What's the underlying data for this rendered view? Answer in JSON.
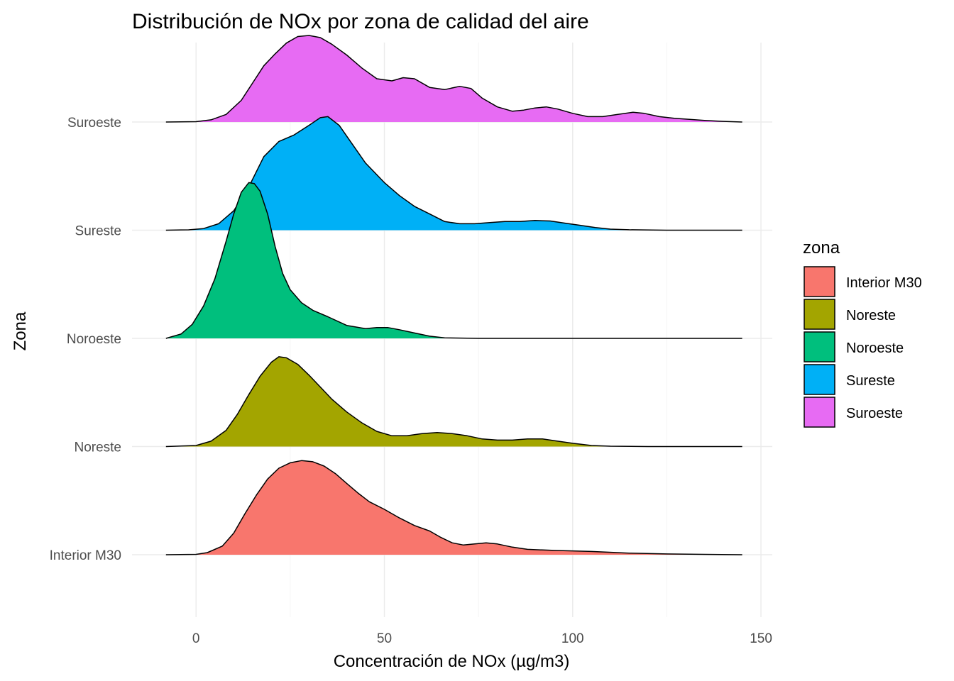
{
  "chart_data": {
    "type": "ridgeline",
    "title": "Distribución de NOx por zona de calidad del aire",
    "xlabel": "Concentración de NOx (µg/m3)",
    "ylabel": "Zona",
    "xlim": [
      -17,
      153
    ],
    "x_ticks": [
      0,
      50,
      100,
      150
    ],
    "x_tick_labels": [
      "0",
      "50",
      "100",
      "150"
    ],
    "x_minor_ticks": [
      25,
      75,
      125
    ],
    "y_categories": [
      "Interior M30",
      "Noreste",
      "Noroeste",
      "Sureste",
      "Suroeste"
    ],
    "grid": true,
    "legend": {
      "title": "zona",
      "position": "right"
    },
    "density_scale_note": "density height in units of category spacing",
    "series": [
      {
        "name": "Interior M30",
        "color": "#F8766D",
        "points": [
          [
            -8,
            0
          ],
          [
            0,
            0.003
          ],
          [
            3,
            0.02
          ],
          [
            7,
            0.08
          ],
          [
            10,
            0.2
          ],
          [
            13,
            0.38
          ],
          [
            16,
            0.55
          ],
          [
            19,
            0.7
          ],
          [
            22,
            0.8
          ],
          [
            25,
            0.85
          ],
          [
            28,
            0.87
          ],
          [
            31,
            0.86
          ],
          [
            34,
            0.82
          ],
          [
            37,
            0.75
          ],
          [
            40,
            0.66
          ],
          [
            43,
            0.57
          ],
          [
            46,
            0.49
          ],
          [
            50,
            0.42
          ],
          [
            54,
            0.34
          ],
          [
            58,
            0.27
          ],
          [
            62,
            0.22
          ],
          [
            65,
            0.16
          ],
          [
            68,
            0.11
          ],
          [
            71,
            0.09
          ],
          [
            74,
            0.1
          ],
          [
            77,
            0.11
          ],
          [
            80,
            0.1
          ],
          [
            84,
            0.07
          ],
          [
            88,
            0.05
          ],
          [
            95,
            0.04
          ],
          [
            105,
            0.03
          ],
          [
            115,
            0.015
          ],
          [
            125,
            0.007
          ],
          [
            135,
            0.003
          ],
          [
            145,
            0
          ]
        ]
      },
      {
        "name": "Noreste",
        "color": "#A3A500",
        "points": [
          [
            -8,
            0
          ],
          [
            0,
            0.01
          ],
          [
            4,
            0.05
          ],
          [
            8,
            0.15
          ],
          [
            11,
            0.3
          ],
          [
            14,
            0.48
          ],
          [
            17,
            0.65
          ],
          [
            20,
            0.78
          ],
          [
            22,
            0.83
          ],
          [
            24,
            0.82
          ],
          [
            27,
            0.76
          ],
          [
            30,
            0.66
          ],
          [
            33,
            0.55
          ],
          [
            36,
            0.44
          ],
          [
            40,
            0.32
          ],
          [
            44,
            0.22
          ],
          [
            48,
            0.14
          ],
          [
            52,
            0.1
          ],
          [
            56,
            0.1
          ],
          [
            60,
            0.12
          ],
          [
            64,
            0.13
          ],
          [
            68,
            0.12
          ],
          [
            72,
            0.1
          ],
          [
            76,
            0.07
          ],
          [
            80,
            0.06
          ],
          [
            84,
            0.06
          ],
          [
            88,
            0.07
          ],
          [
            92,
            0.07
          ],
          [
            96,
            0.05
          ],
          [
            100,
            0.03
          ],
          [
            105,
            0.01
          ],
          [
            110,
            0.003
          ],
          [
            120,
            0
          ],
          [
            145,
            0
          ]
        ]
      },
      {
        "name": "Noroeste",
        "color": "#00BF7D",
        "points": [
          [
            -8,
            0
          ],
          [
            -4,
            0.04
          ],
          [
            -1,
            0.13
          ],
          [
            2,
            0.3
          ],
          [
            5,
            0.55
          ],
          [
            8,
            0.9
          ],
          [
            10,
            1.15
          ],
          [
            12,
            1.35
          ],
          [
            14,
            1.44
          ],
          [
            15.5,
            1.43
          ],
          [
            17,
            1.36
          ],
          [
            19,
            1.15
          ],
          [
            21,
            0.85
          ],
          [
            23,
            0.6
          ],
          [
            25,
            0.45
          ],
          [
            28,
            0.33
          ],
          [
            31,
            0.26
          ],
          [
            35,
            0.2
          ],
          [
            40,
            0.12
          ],
          [
            45,
            0.09
          ],
          [
            48,
            0.1
          ],
          [
            51,
            0.1
          ],
          [
            54,
            0.08
          ],
          [
            58,
            0.05
          ],
          [
            62,
            0.02
          ],
          [
            66,
            0.005
          ],
          [
            75,
            0
          ],
          [
            145,
            0
          ]
        ]
      },
      {
        "name": "Sureste",
        "color": "#00B0F6",
        "points": [
          [
            -8,
            0
          ],
          [
            -2,
            0.003
          ],
          [
            2,
            0.015
          ],
          [
            6,
            0.06
          ],
          [
            10,
            0.18
          ],
          [
            14,
            0.4
          ],
          [
            18,
            0.68
          ],
          [
            22,
            0.82
          ],
          [
            26,
            0.88
          ],
          [
            30,
            0.97
          ],
          [
            33,
            1.04
          ],
          [
            35,
            1.05
          ],
          [
            38,
            0.97
          ],
          [
            41,
            0.82
          ],
          [
            45,
            0.62
          ],
          [
            50,
            0.44
          ],
          [
            54,
            0.32
          ],
          [
            58,
            0.22
          ],
          [
            62,
            0.15
          ],
          [
            66,
            0.08
          ],
          [
            70,
            0.06
          ],
          [
            74,
            0.06
          ],
          [
            78,
            0.07
          ],
          [
            82,
            0.08
          ],
          [
            86,
            0.08
          ],
          [
            90,
            0.09
          ],
          [
            94,
            0.085
          ],
          [
            98,
            0.065
          ],
          [
            102,
            0.045
          ],
          [
            106,
            0.025
          ],
          [
            110,
            0.01
          ],
          [
            115,
            0.004
          ],
          [
            125,
            0
          ],
          [
            145,
            0
          ]
        ]
      },
      {
        "name": "Suroeste",
        "color": "#E76BF3",
        "points": [
          [
            -8,
            0
          ],
          [
            0,
            0.003
          ],
          [
            4,
            0.02
          ],
          [
            8,
            0.07
          ],
          [
            12,
            0.2
          ],
          [
            15,
            0.36
          ],
          [
            18,
            0.52
          ],
          [
            21,
            0.63
          ],
          [
            24,
            0.73
          ],
          [
            27,
            0.79
          ],
          [
            30,
            0.8
          ],
          [
            33,
            0.78
          ],
          [
            36,
            0.72
          ],
          [
            40,
            0.62
          ],
          [
            44,
            0.5
          ],
          [
            48,
            0.4
          ],
          [
            52,
            0.38
          ],
          [
            55,
            0.41
          ],
          [
            58,
            0.4
          ],
          [
            62,
            0.32
          ],
          [
            66,
            0.3
          ],
          [
            70,
            0.33
          ],
          [
            73,
            0.31
          ],
          [
            76,
            0.22
          ],
          [
            80,
            0.14
          ],
          [
            84,
            0.1
          ],
          [
            87,
            0.11
          ],
          [
            90,
            0.13
          ],
          [
            93,
            0.14
          ],
          [
            96,
            0.12
          ],
          [
            100,
            0.08
          ],
          [
            104,
            0.05
          ],
          [
            108,
            0.05
          ],
          [
            112,
            0.07
          ],
          [
            116,
            0.09
          ],
          [
            119,
            0.08
          ],
          [
            123,
            0.05
          ],
          [
            127,
            0.035
          ],
          [
            131,
            0.025
          ],
          [
            135,
            0.015
          ],
          [
            139,
            0.007
          ],
          [
            145,
            0
          ]
        ]
      }
    ]
  }
}
